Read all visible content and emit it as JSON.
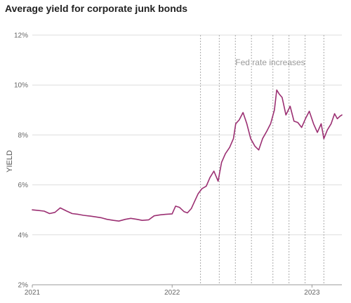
{
  "chart_data": {
    "type": "line",
    "title": "Average yield for corporate junk bonds",
    "ylabel": "YIELD",
    "xlabel": "",
    "ylim": [
      2,
      12
    ],
    "yticks": [
      2,
      4,
      6,
      8,
      10,
      12
    ],
    "ytick_labels": [
      "2%",
      "4%",
      "6%",
      "8%",
      "10%",
      "12%"
    ],
    "xlim": [
      "2021-01-01",
      "2023-03-20"
    ],
    "xticks": [
      "2021-01-01",
      "2022-01-01",
      "2023-01-01"
    ],
    "xtick_labels": [
      "2021",
      "2022",
      "2023"
    ],
    "grid": "horizontal",
    "legend": "none",
    "annotation": "Fed rate increases",
    "fed_rate_increases": [
      "2022-03-16",
      "2022-05-04",
      "2022-06-15",
      "2022-07-27",
      "2022-09-21",
      "2022-11-02",
      "2022-12-14",
      "2023-02-01"
    ],
    "colors": {
      "line": "#9b2f72",
      "grid": "#dddddd",
      "vline": "#aaaaaa"
    },
    "series": [
      {
        "x": [
          "2021-01-01",
          "2021-01-15",
          "2021-02-01",
          "2021-02-15",
          "2021-03-01",
          "2021-03-15",
          "2021-04-01",
          "2021-04-15",
          "2021-05-01",
          "2021-05-15",
          "2021-06-01",
          "2021-06-15",
          "2021-07-01",
          "2021-07-15",
          "2021-08-01",
          "2021-08-15",
          "2021-09-01",
          "2021-09-15",
          "2021-10-01",
          "2021-10-15",
          "2021-11-01",
          "2021-11-15",
          "2021-12-01",
          "2021-12-15",
          "2022-01-01",
          "2022-01-10",
          "2022-01-20",
          "2022-02-01",
          "2022-02-10",
          "2022-02-20",
          "2022-03-01",
          "2022-03-10",
          "2022-03-20",
          "2022-03-31",
          "2022-04-10",
          "2022-04-20",
          "2022-05-01",
          "2022-05-10",
          "2022-05-20",
          "2022-05-31",
          "2022-06-10",
          "2022-06-16",
          "2022-06-25",
          "2022-07-05",
          "2022-07-15",
          "2022-07-25",
          "2022-08-05",
          "2022-08-15",
          "2022-08-25",
          "2022-09-05",
          "2022-09-15",
          "2022-09-25",
          "2022-10-01",
          "2022-10-07",
          "2022-10-15",
          "2022-10-25",
          "2022-11-05",
          "2022-11-15",
          "2022-11-25",
          "2022-12-05",
          "2022-12-15",
          "2022-12-25",
          "2023-01-05",
          "2023-01-15",
          "2023-01-25",
          "2023-02-01",
          "2023-02-10",
          "2023-02-20",
          "2023-03-01",
          "2023-03-08",
          "2023-03-15",
          "2023-03-20"
        ],
        "values": [
          5.0,
          4.98,
          4.95,
          4.85,
          4.9,
          5.08,
          4.95,
          4.85,
          4.82,
          4.78,
          4.75,
          4.72,
          4.68,
          4.62,
          4.58,
          4.55,
          4.62,
          4.66,
          4.62,
          4.58,
          4.6,
          4.76,
          4.8,
          4.82,
          4.84,
          5.15,
          5.1,
          4.93,
          4.88,
          5.05,
          5.35,
          5.65,
          5.85,
          5.95,
          6.3,
          6.55,
          6.15,
          6.9,
          7.25,
          7.5,
          7.85,
          8.45,
          8.6,
          8.9,
          8.45,
          7.85,
          7.55,
          7.4,
          7.85,
          8.15,
          8.45,
          9.0,
          9.8,
          9.65,
          9.5,
          8.8,
          9.15,
          8.55,
          8.5,
          8.3,
          8.65,
          8.95,
          8.45,
          8.1,
          8.45,
          7.85,
          8.2,
          8.45,
          8.85,
          8.65,
          8.75,
          8.8
        ]
      }
    ]
  }
}
